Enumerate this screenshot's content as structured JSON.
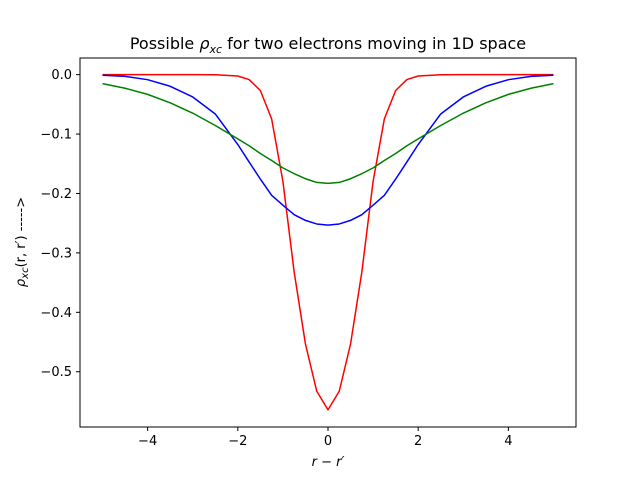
{
  "chart_data": {
    "type": "line",
    "title_parts": [
      "Possible ",
      "ρ",
      "xc",
      " for two electrons moving in 1D space"
    ],
    "xlabel": "r − r′",
    "ylabel_parts": [
      "ρ",
      "xc",
      "(r, r′) ----->"
    ],
    "xlim": [
      -5.5,
      5.5
    ],
    "ylim": [
      -0.593,
      0.028
    ],
    "grid": false,
    "x_ticks": [
      -4,
      -2,
      0,
      2,
      4
    ],
    "x_tick_labels": [
      "−4",
      "−2",
      "0",
      "2",
      "4"
    ],
    "y_ticks": [
      0.0,
      -0.1,
      -0.2,
      -0.3,
      -0.4,
      -0.5
    ],
    "y_tick_labels": [
      "0.0",
      "−0.1",
      "−0.2",
      "−0.3",
      "−0.4",
      "−0.5"
    ],
    "x": [
      -5,
      -4.5,
      -4,
      -3.5,
      -3,
      -2.5,
      -2,
      -1.75,
      -1.5,
      -1.25,
      -1,
      -0.75,
      -0.5,
      -0.25,
      0,
      0.25,
      0.5,
      0.75,
      1,
      1.25,
      1.5,
      1.75,
      2,
      2.5,
      3,
      3.5,
      4,
      4.5,
      5
    ],
    "series": [
      {
        "color": "#ff0000",
        "values": [
          0.0,
          0.0,
          0.0,
          0.0,
          0.0,
          -0.0001,
          -0.0023,
          -0.0083,
          -0.0267,
          -0.0745,
          -0.1796,
          -0.3324,
          -0.4533,
          -0.5327,
          -0.5642,
          -0.5327,
          -0.4533,
          -0.3324,
          -0.1796,
          -0.0745,
          -0.0267,
          -0.0083,
          -0.0023,
          -0.0001,
          0.0,
          0.0,
          0.0,
          0.0,
          0.0
        ]
      },
      {
        "color": "#0000ff",
        "values": [
          -0.0011,
          -0.0029,
          -0.0085,
          -0.0196,
          -0.0376,
          -0.0662,
          -0.1176,
          -0.1469,
          -0.1758,
          -0.203,
          -0.2197,
          -0.2357,
          -0.2453,
          -0.2513,
          -0.2532,
          -0.2513,
          -0.2453,
          -0.2357,
          -0.2197,
          -0.203,
          -0.1758,
          -0.1469,
          -0.1176,
          -0.0662,
          -0.0376,
          -0.0196,
          -0.0085,
          -0.0029,
          -0.0011
        ]
      },
      {
        "color": "#008000",
        "values": [
          -0.0152,
          -0.0229,
          -0.0332,
          -0.0474,
          -0.0648,
          -0.0856,
          -0.1081,
          -0.1197,
          -0.1327,
          -0.1445,
          -0.1569,
          -0.1666,
          -0.1752,
          -0.1814,
          -0.183,
          -0.1814,
          -0.1752,
          -0.1666,
          -0.1569,
          -0.1445,
          -0.1327,
          -0.1197,
          -0.1081,
          -0.0856,
          -0.0648,
          -0.0474,
          -0.0332,
          -0.0229,
          -0.0152
        ]
      }
    ]
  }
}
